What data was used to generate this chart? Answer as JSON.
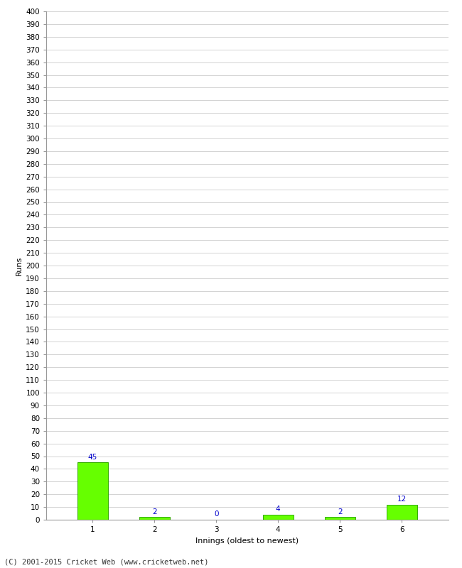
{
  "categories": [
    1,
    2,
    3,
    4,
    5,
    6
  ],
  "values": [
    45,
    2,
    0,
    4,
    2,
    12
  ],
  "bar_color": "#66ff00",
  "bar_edge_color": "#33aa00",
  "value_label_color": "#0000cc",
  "xlabel": "Innings (oldest to newest)",
  "ylabel": "Runs",
  "ylim": [
    0,
    400
  ],
  "ytick_step": 10,
  "footer": "(C) 2001-2015 Cricket Web (www.cricketweb.net)",
  "background_color": "#ffffff",
  "grid_color": "#cccccc",
  "value_fontsize": 7.5,
  "label_fontsize": 8,
  "tick_fontsize": 7.5,
  "footer_fontsize": 7.5
}
